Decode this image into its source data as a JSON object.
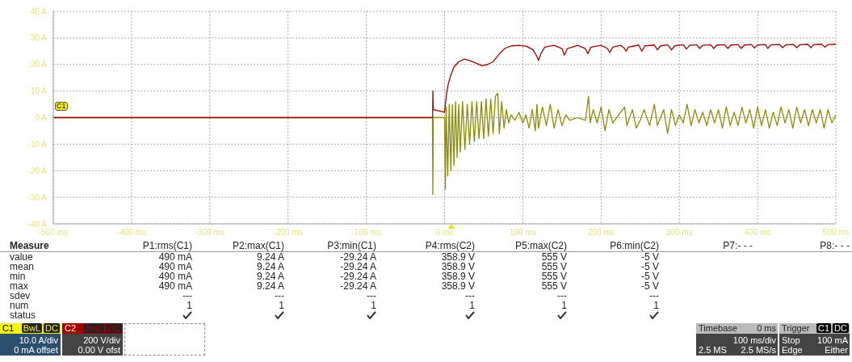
{
  "chart_data": {
    "type": "line",
    "legend": "bottom left",
    "grid": true,
    "line_style": "solid",
    "marker": "none",
    "xlim": [
      -500,
      500
    ],
    "xticks": [
      {
        "value": -500,
        "label": "-500 ms"
      },
      {
        "value": -400,
        "label": "-400 ms"
      },
      {
        "value": -300,
        "label": "-300 ms"
      },
      {
        "value": -200,
        "label": "-200 ms"
      },
      {
        "value": -100,
        "label": "-100 ms"
      },
      {
        "value": 0,
        "label": "0 ms"
      },
      {
        "value": 100,
        "label": "100 ms"
      },
      {
        "value": 200,
        "label": "200 ms"
      },
      {
        "value": 300,
        "label": "300 ms"
      },
      {
        "value": 400,
        "label": "400 ms"
      },
      {
        "value": 500,
        "label": "500 ms"
      }
    ],
    "ylim": [
      -40,
      40
    ],
    "yticks": [
      {
        "value": -40,
        "label": "-40 A"
      },
      {
        "value": -30,
        "label": "-30 A"
      },
      {
        "value": -20,
        "label": "-20 A"
      },
      {
        "value": -10,
        "label": "-10 A"
      },
      {
        "value": 0,
        "label": "0 A"
      },
      {
        "value": 10,
        "label": "10 A"
      },
      {
        "value": 20,
        "label": "20 A"
      },
      {
        "value": 30,
        "label": "30 A"
      },
      {
        "value": 40,
        "label": "40 A"
      }
    ],
    "series": [
      {
        "name": "C1",
        "color": "#8c8c00",
        "x": [
          -500,
          -15.5,
          -15,
          -14.5,
          0,
          1,
          2,
          4,
          6,
          8,
          10,
          12,
          14,
          16,
          18,
          20,
          23,
          26,
          29,
          32,
          35,
          38,
          41,
          44,
          47,
          50,
          53,
          56,
          59,
          62,
          65,
          68,
          70,
          73,
          76,
          79,
          82,
          85,
          90,
          95,
          100,
          104,
          108,
          112,
          116,
          118,
          120,
          125,
          130,
          135,
          140,
          145,
          150,
          155,
          160,
          170,
          180,
          184,
          186,
          190,
          195,
          200,
          205,
          210,
          215,
          220,
          230,
          233,
          240,
          245,
          250,
          255,
          262,
          268,
          272,
          280,
          285,
          290,
          295,
          300,
          305,
          310,
          315,
          320,
          325,
          330,
          335,
          340,
          345,
          350,
          355,
          360,
          365,
          370,
          375,
          380,
          385,
          390,
          395,
          400,
          405,
          410,
          415,
          420,
          425,
          430,
          435,
          440,
          445,
          450,
          455,
          460,
          465,
          470,
          475,
          480,
          485,
          490,
          495,
          500
        ],
        "values": [
          0,
          0,
          -29,
          0,
          0,
          -27,
          4,
          -22,
          5,
          -20,
          5,
          -18,
          6,
          -15,
          5,
          -13,
          6,
          -12,
          5,
          -10,
          6,
          -9,
          6,
          -8,
          6,
          -8,
          7,
          -7,
          7,
          -6,
          8,
          9.2,
          -6,
          6,
          -4,
          3,
          -2,
          1,
          -1,
          2,
          -2,
          1,
          -4,
          3,
          -5,
          5,
          -4,
          4,
          -3,
          5,
          -4,
          3,
          -3,
          1,
          -1,
          0,
          -1,
          8,
          -2,
          3,
          -2,
          4,
          -5,
          3,
          -2,
          0,
          4,
          -3,
          3,
          -4,
          -1,
          3,
          -3,
          5,
          -3,
          3,
          -6,
          3,
          -3,
          1,
          -2,
          5,
          -3,
          3,
          -2,
          2,
          -3,
          3,
          -2,
          3,
          -4,
          4,
          -3,
          2,
          -3,
          4,
          -2,
          3,
          -4,
          4,
          -3,
          3,
          -4,
          2,
          -3,
          4,
          -2,
          3,
          -4,
          4,
          -2,
          3,
          -3,
          3,
          -2,
          3,
          -4,
          3,
          -2,
          1
        ]
      },
      {
        "name": "C2",
        "color": "#a50000",
        "x": [
          -500,
          -15.2,
          -15,
          -14.5,
          0,
          1,
          3,
          5,
          8,
          12,
          18,
          25,
          32,
          40,
          48,
          55,
          62,
          70,
          77,
          85,
          95,
          105,
          113,
          118,
          120,
          123,
          128,
          140,
          150,
          153,
          157,
          170,
          180,
          183,
          187,
          200,
          208,
          211,
          215,
          225,
          230,
          232,
          235,
          248,
          252,
          256,
          268,
          272,
          276,
          285,
          290,
          294,
          305,
          309,
          313,
          322,
          326,
          330,
          340,
          344,
          348,
          358,
          362,
          366,
          375,
          379,
          383,
          392,
          396,
          400,
          410,
          413,
          417,
          428,
          432,
          436,
          446,
          450,
          454,
          464,
          468,
          472,
          482,
          486,
          490,
          500
        ],
        "values": [
          0,
          0,
          10,
          3,
          2,
          5,
          10,
          13,
          16,
          19,
          21,
          22,
          21.5,
          20.5,
          19.5,
          20,
          21,
          24,
          26,
          27,
          27.2,
          26.8,
          25.5,
          23,
          21.5,
          24,
          26.5,
          27.2,
          26,
          23.5,
          26,
          27.2,
          26,
          24,
          26.5,
          27.2,
          26,
          24.5,
          26.5,
          27.2,
          26,
          25,
          26.5,
          27.3,
          25,
          27,
          27.3,
          25.5,
          27,
          27.4,
          25.5,
          27,
          27.4,
          25.8,
          27.2,
          27.4,
          26,
          27.2,
          27.4,
          26,
          27.3,
          27.4,
          26,
          27.3,
          27.5,
          26,
          27.3,
          27.5,
          26.2,
          27.3,
          27.5,
          26,
          27.4,
          27.5,
          26.3,
          27.4,
          27.5,
          26.3,
          27.4,
          27.6,
          26.3,
          27.5,
          27.6,
          26.5,
          27.5,
          27.6
        ]
      }
    ],
    "annotations": [
      "Measure",
      "P1:rms(C1)",
      "P2:max(C1)",
      "P3:min(C1)",
      "P4:rms(C2)",
      "P5:max(C2)",
      "P6:min(C2)",
      "P7:- - -",
      "P8:- - -",
      "value",
      "490 mA",
      "9.24 A",
      "-29.24 A",
      "358.9 V",
      "555 V",
      "-5 V",
      "mean",
      "490 mA",
      "9.24 A",
      "-29.24 A",
      "358.9 V",
      "555 V",
      "-5 V",
      "min",
      "490 mA",
      "9.24 A",
      "-29.24 A",
      "358.9 V",
      "555 V",
      "-5 V",
      "max",
      "490 mA",
      "9.24 A",
      "-29.24 A",
      "358.9 V",
      "555 V",
      "-5 V",
      "sdev",
      "---",
      "---",
      "---",
      "---",
      "---",
      "---",
      "num",
      "1",
      "1",
      "1",
      "1",
      "1",
      "1",
      "status",
      "BwL",
      "DC",
      "10.0 A/div",
      "0 mA offset",
      "BwL",
      "DC",
      "200 V/div",
      "0.00 V ofst",
      "Timebase",
      "0 ms",
      "100 ms/div",
      "2.5 MS",
      "2.5 MS/s",
      "Trigger",
      "C1",
      "DC",
      "Stop",
      "100 mA",
      "Edge",
      "Either"
    ]
  }
}
